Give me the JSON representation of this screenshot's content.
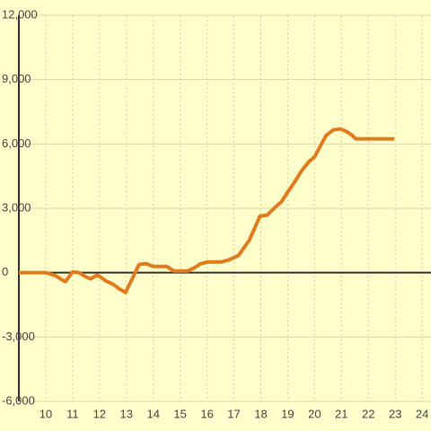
{
  "chart_data": {
    "type": "line",
    "x": [
      9,
      10,
      10.33,
      10.5,
      10.73,
      11,
      11.23,
      11.5,
      11.67,
      11.9,
      12,
      12.23,
      12.5,
      12.73,
      12.97,
      13.23,
      13.47,
      13.73,
      14,
      14.5,
      14.77,
      15.27,
      15.5,
      15.77,
      16.03,
      16.53,
      16.8,
      17.17,
      17.57,
      17.97,
      18.23,
      18.5,
      18.77,
      19.03,
      19.3,
      19.53,
      19.8,
      20,
      20.23,
      20.43,
      20.7,
      20.97,
      21.2,
      21.4,
      21.53,
      22.97
    ],
    "series": [
      {
        "color": "#e07b20",
        "values": [
          0,
          0,
          -120,
          -250,
          -420,
          40,
          0,
          -200,
          -290,
          -120,
          -170,
          -380,
          -540,
          -750,
          -920,
          -250,
          380,
          420,
          290,
          290,
          80,
          80,
          210,
          420,
          500,
          500,
          590,
          800,
          1510,
          2640,
          2680,
          3010,
          3310,
          3810,
          4310,
          4770,
          5190,
          5400,
          5940,
          6400,
          6660,
          6700,
          6570,
          6400,
          6240,
          6240
        ]
      }
    ],
    "xlim": [
      9,
      24.33
    ],
    "xticks": [
      10,
      11,
      12,
      13,
      14,
      15,
      16,
      17,
      18,
      19,
      20,
      21,
      22,
      23,
      24
    ],
    "ylim": [
      -6000,
      12000
    ],
    "yticks": [
      {
        "value": -6000,
        "label": "-6,000"
      },
      {
        "value": -3000,
        "label": "-3,000"
      },
      0,
      {
        "value": 3000,
        "label": "3,000"
      },
      {
        "value": 6000,
        "label": "6,000"
      },
      {
        "value": 9000,
        "label": "9,000"
      },
      {
        "value": 12000,
        "label": "12,000"
      }
    ],
    "grid": true
  }
}
